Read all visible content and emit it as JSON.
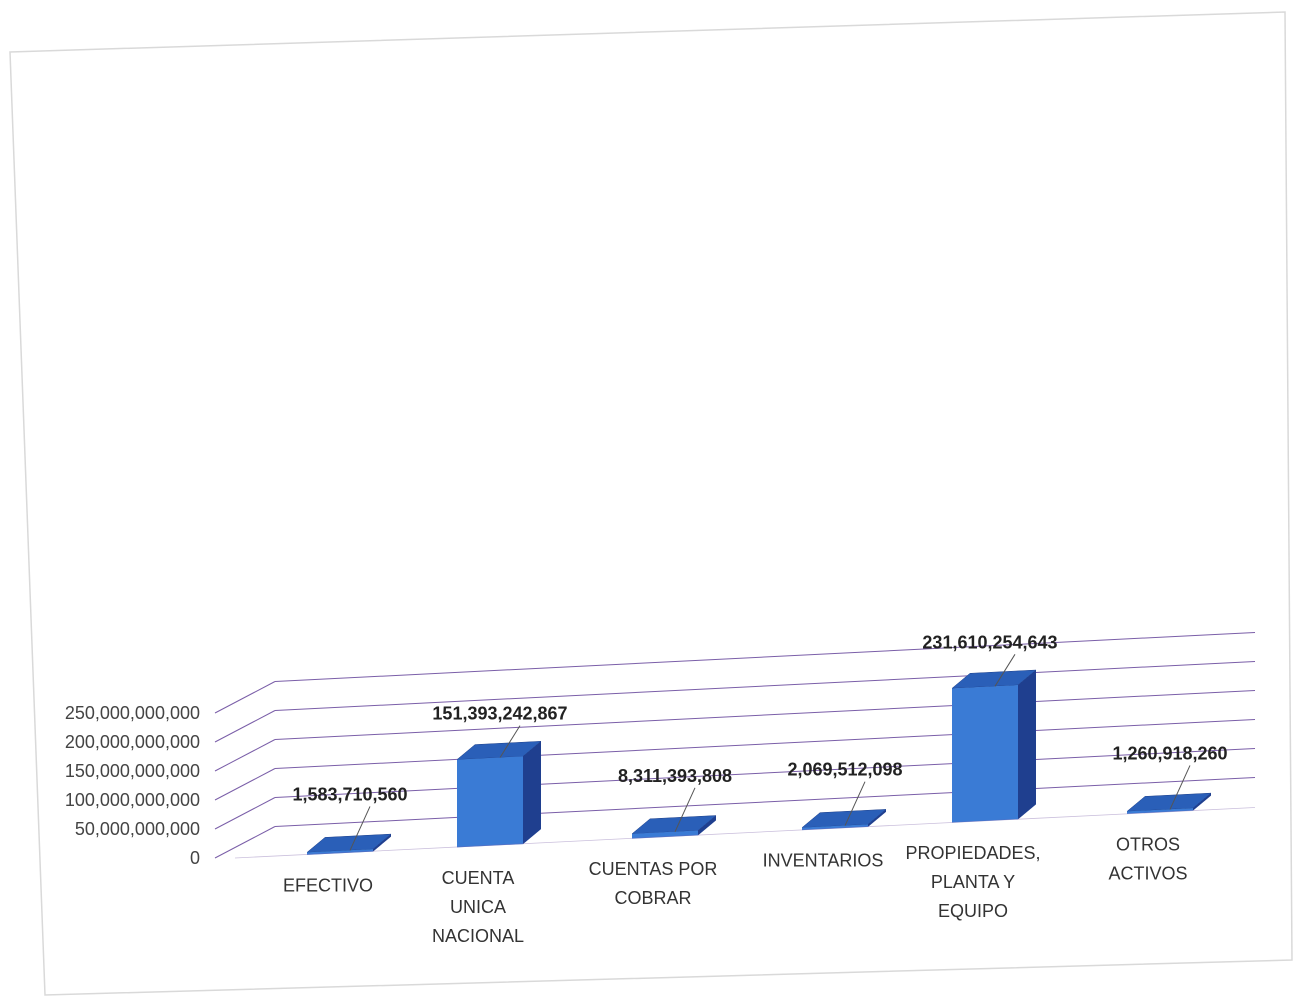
{
  "chart_data": {
    "type": "bar",
    "style": "3d-column",
    "categories": [
      [
        "EFECTIVO"
      ],
      [
        "CUENTA",
        "UNICA",
        "NACIONAL"
      ],
      [
        "CUENTAS POR",
        "COBRAR"
      ],
      [
        "INVENTARIOS"
      ],
      [
        "PROPIEDADES,",
        "PLANTA Y",
        "EQUIPO"
      ],
      [
        "OTROS",
        "ACTIVOS"
      ]
    ],
    "values": [
      1583710560,
      151393242867,
      8311393808,
      2069512098,
      231610254643,
      1260918260
    ],
    "data_labels": [
      "1,583,710,560",
      "151,393,242,867",
      "8,311,393,808",
      "2,069,512,098",
      "231,610,254,643",
      "1,260,918,260"
    ],
    "y_ticks": [
      0,
      50000000000,
      100000000000,
      150000000000,
      200000000000,
      250000000000
    ],
    "y_tick_labels": [
      "0",
      "50,000,000,000",
      "100,000,000,000",
      "150,000,000,000",
      "200,000,000,000",
      "250,000,000,000"
    ],
    "ylim": [
      0,
      250000000000
    ],
    "grid": true,
    "legend": "none",
    "colors": {
      "bar_front": "#3a7bd5",
      "bar_side": "#1f3f8f",
      "bar_top": "#2a5fb8",
      "gridline": "#7a5ea8",
      "border": "#d9d9d9"
    }
  }
}
